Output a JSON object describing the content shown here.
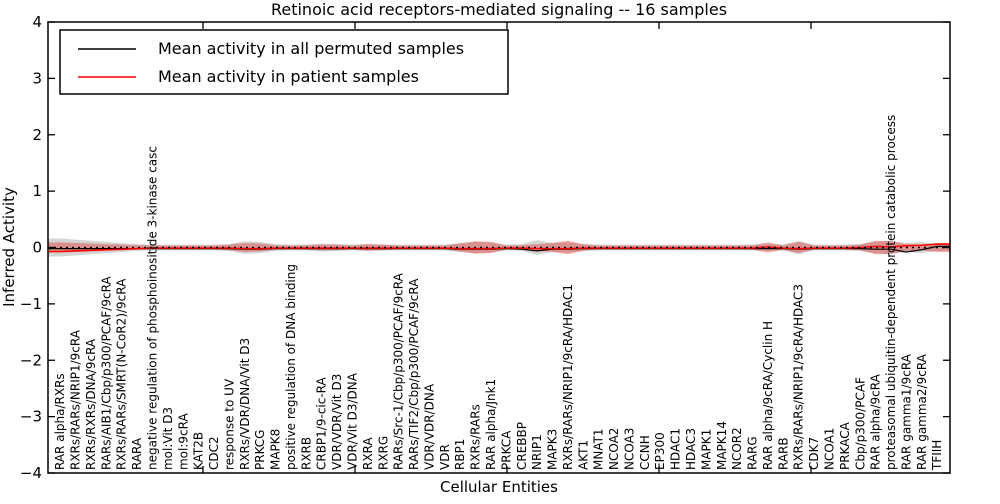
{
  "title": "Retinoic acid receptors-mediated signaling -- 16 samples",
  "ylabel": "Inferred Activity",
  "xlabel": "Cellular Entities",
  "legend": {
    "entries": [
      {
        "label": "Mean activity in all permuted samples",
        "color": "#000000"
      },
      {
        "label": "Mean activity in patient samples",
        "color": "#ff0000"
      }
    ]
  },
  "ytick_labels": [
    "4",
    "3",
    "2",
    "1",
    "0",
    "−1",
    "−2",
    "−3",
    "−4"
  ],
  "chart_data": {
    "type": "violin",
    "title": "Retinoic acid receptors-mediated signaling -- 16 samples",
    "xlabel": "Cellular Entities",
    "ylabel": "Inferred Activity",
    "ylim": [
      -4,
      4
    ],
    "yticks": [
      4,
      3,
      2,
      1,
      0,
      -1,
      -2,
      -3,
      -4
    ],
    "grid": false,
    "legend_position": "upper left",
    "baseline": 0,
    "categories": [
      "RAR alpha/RXRs",
      "RXRs/RARs/NRIP1/9cRA",
      "RXRs/RXRs/DNA/9cRA",
      "RARs/AIB1/Cbp/p300/PCAF/9cRA",
      "RXRs/RARs/SMRT(N-CoR2)/9cRA",
      "RARA",
      "negative regulation of phosphoinositide 3-kinase casc",
      "mol:Vit D3",
      "mol:9cRA",
      "KAT2B",
      "CDC2",
      "response to UV",
      "RXRs/VDR/DNA/Vit D3",
      "PRKCG",
      "MAPK8",
      "positive regulation of DNA binding",
      "RXRB",
      "CRBP1/9-cic-RA",
      "VDR/VDR/Vit D3",
      "VDR/Vit D3/DNA",
      "RXRA",
      "RXRG",
      "RARs/Src-1/Cbp/p300/PCAF/9cRA",
      "RARs/TIF2/Cbp/p300/PCAF/9cRA",
      "VDR/VDR/DNA",
      "VDR",
      "RBP1",
      "RXRs/RARs",
      "RAR alpha/Jnk1",
      "PRKCA",
      "CREBBP",
      "NRIP1",
      "MAPK3",
      "RXRs/RARs/NRIP1/9cRA/HDAC1",
      "AKT1",
      "MNAT1",
      "NCOA2",
      "NCOA3",
      "CCNH",
      "EP300",
      "HDAC1",
      "HDAC3",
      "MAPK1",
      "MAPK14",
      "NCOR2",
      "RARG",
      "RAR alpha/9cRA/Cyclin H",
      "RARB",
      "RXRs/RARs/NRIP1/9cRA/HDAC3",
      "CDK7",
      "NCOA1",
      "PRKACA",
      "Cbp/p300/PCAF",
      "RAR alpha/9cRA",
      "proteasomal ubiquitin-dependent protein catabolic process",
      "RAR gamma1/9cRA",
      "RAR gamma2/9cRA",
      "TFIIH"
    ],
    "series": [
      {
        "name": "permuted_spread_halfwidth",
        "role": "band",
        "color": "rgba(160,160,160,0.45)",
        "values": [
          0.16,
          0.14,
          0.12,
          0.1,
          0.08,
          0.06,
          0.05,
          0.05,
          0.05,
          0.05,
          0.05,
          0.06,
          0.11,
          0.1,
          0.06,
          0.05,
          0.05,
          0.07,
          0.06,
          0.05,
          0.06,
          0.05,
          0.05,
          0.05,
          0.05,
          0.05,
          0.08,
          0.1,
          0.09,
          0.05,
          0.06,
          0.13,
          0.08,
          0.09,
          0.06,
          0.05,
          0.05,
          0.05,
          0.05,
          0.05,
          0.05,
          0.05,
          0.05,
          0.05,
          0.05,
          0.05,
          0.06,
          0.05,
          0.12,
          0.05,
          0.05,
          0.05,
          0.06,
          0.1,
          0.12,
          0.08,
          0.1,
          0.06
        ]
      },
      {
        "name": "patient_spread_halfwidth",
        "role": "band",
        "color": "rgba(222,45,38,0.40)",
        "values": [
          0.09,
          0.08,
          0.07,
          0.06,
          0.05,
          0.04,
          0.035,
          0.035,
          0.035,
          0.035,
          0.035,
          0.05,
          0.08,
          0.07,
          0.04,
          0.035,
          0.04,
          0.05,
          0.05,
          0.035,
          0.06,
          0.05,
          0.035,
          0.035,
          0.035,
          0.035,
          0.07,
          0.11,
          0.1,
          0.035,
          0.04,
          0.06,
          0.08,
          0.12,
          0.06,
          0.035,
          0.035,
          0.035,
          0.035,
          0.035,
          0.035,
          0.035,
          0.035,
          0.035,
          0.035,
          0.04,
          0.09,
          0.04,
          0.1,
          0.035,
          0.035,
          0.035,
          0.05,
          0.12,
          0.11,
          0.06,
          0.05,
          0.08
        ]
      },
      {
        "name": "Mean activity in all permuted samples",
        "role": "line",
        "color": "#000000",
        "values": [
          -0.02,
          -0.02,
          -0.02,
          -0.02,
          -0.02,
          -0.02,
          -0.02,
          -0.02,
          -0.02,
          -0.02,
          -0.02,
          -0.02,
          -0.03,
          -0.03,
          -0.02,
          -0.02,
          -0.02,
          -0.02,
          -0.02,
          -0.02,
          -0.02,
          -0.02,
          -0.02,
          -0.02,
          -0.02,
          -0.02,
          -0.03,
          -0.03,
          -0.03,
          -0.02,
          -0.03,
          -0.06,
          -0.03,
          -0.03,
          -0.02,
          -0.02,
          -0.02,
          -0.02,
          -0.02,
          -0.02,
          -0.02,
          -0.02,
          -0.02,
          -0.02,
          -0.02,
          -0.02,
          -0.02,
          -0.02,
          -0.03,
          -0.02,
          -0.02,
          -0.02,
          -0.02,
          -0.03,
          -0.03,
          -0.08,
          -0.04,
          0.02
        ]
      },
      {
        "name": "Mean activity in patient samples",
        "role": "line",
        "color": "#ff0000",
        "values": [
          -0.07,
          -0.06,
          -0.05,
          -0.04,
          -0.03,
          -0.02,
          -0.01,
          -0.01,
          -0.01,
          -0.01,
          -0.01,
          -0.01,
          -0.02,
          -0.02,
          -0.01,
          -0.01,
          -0.01,
          -0.01,
          -0.01,
          -0.01,
          -0.01,
          -0.01,
          -0.01,
          -0.01,
          -0.01,
          -0.01,
          -0.02,
          -0.02,
          -0.02,
          -0.01,
          -0.01,
          -0.02,
          -0.02,
          -0.02,
          -0.01,
          -0.01,
          -0.01,
          -0.01,
          -0.01,
          -0.01,
          -0.01,
          -0.01,
          -0.01,
          -0.01,
          -0.01,
          -0.01,
          0.01,
          -0.01,
          -0.02,
          -0.01,
          -0.01,
          -0.01,
          0.0,
          0.02,
          0.01,
          0.03,
          0.04,
          0.06
        ]
      },
      {
        "name": "zero_reference",
        "role": "dotted-line",
        "color": "#000000",
        "values": [
          0
        ]
      }
    ]
  }
}
